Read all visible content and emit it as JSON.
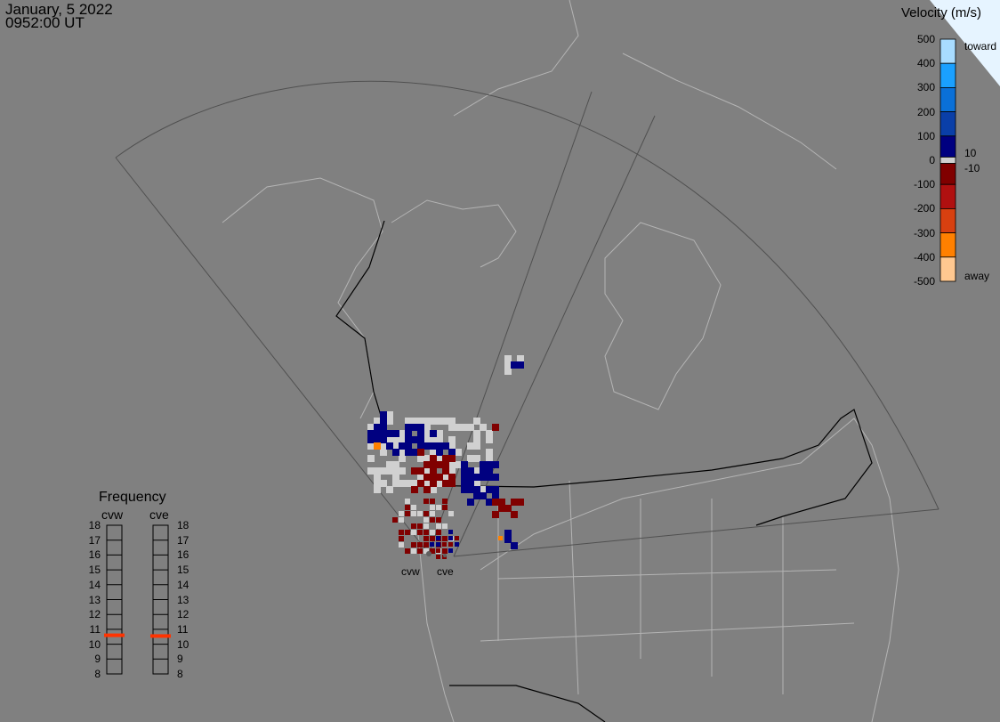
{
  "header": {
    "date": "January, 5 2022",
    "time": "0952:00 UT"
  },
  "colorbar": {
    "title": "Velocity (m/s)",
    "ticks": [
      "500",
      "400",
      "300",
      "200",
      "100",
      "0",
      "-100",
      "-200",
      "-300",
      "-400",
      "-500"
    ],
    "toward_label": "toward",
    "away_label": "away",
    "ground_scatter_upper": "10",
    "ground_scatter_lower": "-10",
    "colors": [
      "#a8dcff",
      "#1aa0ff",
      "#0a70d8",
      "#0a3fa8",
      "#000080",
      "#d0d0d0",
      "#800000",
      "#b01010",
      "#d84010",
      "#ff8000",
      "#ffc890"
    ]
  },
  "radars": {
    "west": "cvw",
    "east": "cve"
  },
  "frequency": {
    "title": "Frequency",
    "unit_range": [
      8,
      18
    ],
    "ticks": [
      "18",
      "17",
      "16",
      "15",
      "14",
      "13",
      "12",
      "11",
      "10",
      "9",
      "8"
    ],
    "cvw_mhz": 10.6,
    "cve_mhz": 10.55,
    "marker_color": "#ff3300"
  },
  "map": {
    "background": "#808080",
    "coastline_color": "#b4b4b4",
    "fov_color": "#505050",
    "ground_scatter_color": "#d0d0d0"
  }
}
